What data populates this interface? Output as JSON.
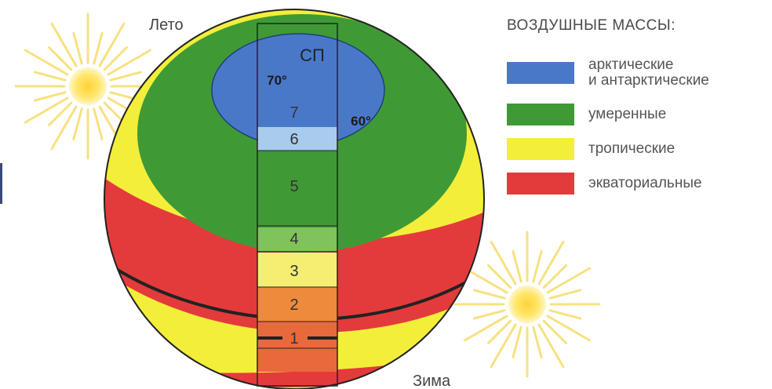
{
  "diagram": {
    "season_summer": "Лето",
    "season_winter": "Зима",
    "pole_label": "СП",
    "latitude_70": "70°",
    "latitude_60": "60°",
    "zones": [
      "1",
      "2",
      "3",
      "4",
      "5",
      "6",
      "7"
    ]
  },
  "legend": {
    "title": "ВОЗДУШНЫЕ МАССЫ:",
    "items": [
      {
        "label_line1": "арктические",
        "label_line2": "и антарктические",
        "color": "#4a78c9"
      },
      {
        "label_line1": "умеренные",
        "label_line2": "",
        "color": "#3f9a35"
      },
      {
        "label_line1": "тропические",
        "label_line2": "",
        "color": "#f3ee3a"
      },
      {
        "label_line1": "экваториальные",
        "label_line2": "",
        "color": "#e33b3b"
      }
    ]
  },
  "colors": {
    "arctic": "#4a78c9",
    "temperate": "#3f9a35",
    "tropical": "#f3ee3a",
    "equatorial": "#e33b3b",
    "zone6": "#a9cbee",
    "zone4": "#7fc35a",
    "zone3": "#f4ee72",
    "zone2": "#ee8a3c",
    "zone1": "#e8693c"
  }
}
